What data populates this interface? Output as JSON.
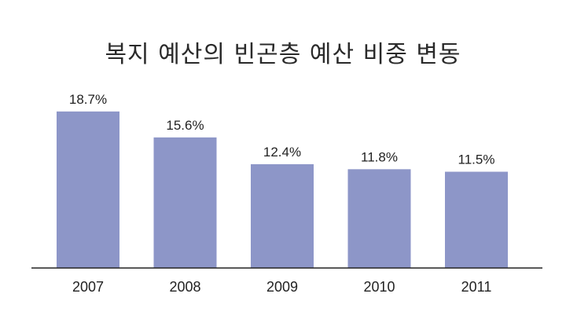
{
  "chart_data": {
    "type": "bar",
    "title": "복지 예산의 빈곤층 예산 비중 변동",
    "categories": [
      "2007",
      "2008",
      "2009",
      "2010",
      "2011"
    ],
    "values": [
      18.7,
      15.6,
      12.4,
      11.8,
      11.5
    ],
    "value_labels": [
      "18.7%",
      "15.6%",
      "12.4%",
      "11.8%",
      "11.5%"
    ],
    "xlabel": "",
    "ylabel": "",
    "ylim": [
      0,
      20
    ],
    "grid": false,
    "bar_color": "#8d96c8",
    "axis_color": "#222222"
  }
}
